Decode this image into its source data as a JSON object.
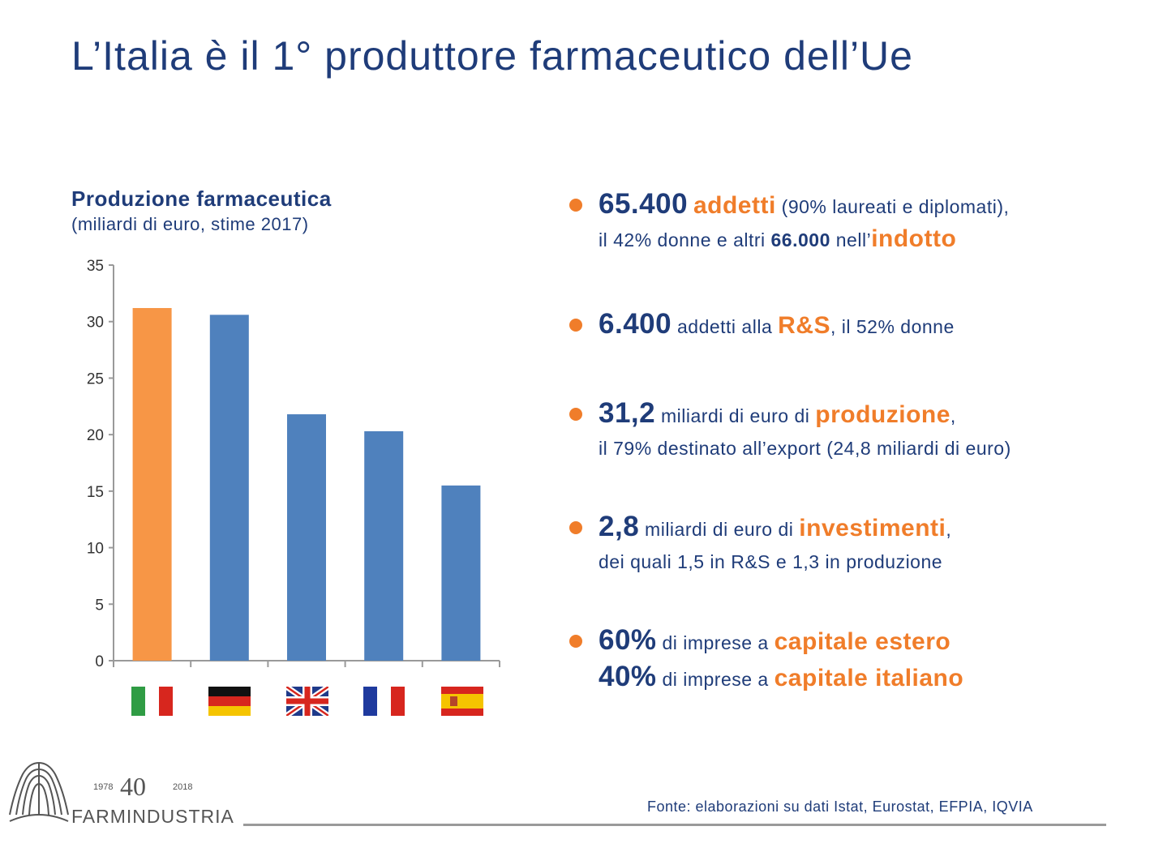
{
  "page": {
    "title": "L’Italia è il 1°  produttore farmaceutico dell’Ue",
    "source": "Fonte: elaborazioni su dati Istat, Eurostat, EFPIA, IQVIA"
  },
  "colors": {
    "navy": "#1f3c79",
    "orange": "#f07d2a",
    "bar_blue": "#4f81bd",
    "bar_orange": "#f79646"
  },
  "chart_data": {
    "type": "bar",
    "title": "Produzione farmaceutica",
    "subtitle": "(miliardi di euro, stime 2017)",
    "categories": [
      "Italy flag",
      "Germany flag",
      "UK flag",
      "France flag",
      "Spain flag"
    ],
    "values": [
      31.2,
      30.6,
      21.8,
      20.3,
      15.5
    ],
    "bar_colors": [
      "#f79646",
      "#4f81bd",
      "#4f81bd",
      "#4f81bd",
      "#4f81bd"
    ],
    "ylim": [
      0,
      35
    ],
    "yticks": [
      "0",
      "5",
      "10",
      "15",
      "20",
      "25",
      "30",
      "35"
    ],
    "xlabel": "",
    "ylabel": "",
    "grid": false
  },
  "bullets": [
    {
      "line1": {
        "num": "65.400",
        "key": "addetti",
        "rest": " (90% laureati e diplomati),"
      },
      "line2": {
        "pre": "il 42% donne e altri ",
        "bold": "66.000",
        "mid": " nell’",
        "key": "indotto"
      }
    },
    {
      "line1": {
        "num": "6.400",
        "pre": " addetti alla ",
        "key": "R&S",
        "rest": ", il 52% donne"
      }
    },
    {
      "line1": {
        "num": "31,2",
        "pre": " miliardi di euro di ",
        "key": "produzione",
        "rest": ","
      },
      "line2": {
        "text": "il 79% destinato all’export (24,8 miliardi di euro)"
      }
    },
    {
      "line1": {
        "num": "2,8",
        "pre": " miliardi di euro di ",
        "key": "investimenti",
        "rest": ","
      },
      "line2": {
        "text": "dei quali 1,5 in R&S e 1,3 in produzione"
      }
    },
    {
      "line1": {
        "num": "60%",
        "pre": " di imprese a ",
        "key": "capitale estero"
      },
      "line2": {
        "num": "40%",
        "pre": " di imprese a ",
        "key": "capitale italiano"
      }
    }
  ],
  "logo": {
    "year_start": "1978",
    "number": "40",
    "year_end": "2018",
    "name": "FARMINDUSTRIA"
  }
}
